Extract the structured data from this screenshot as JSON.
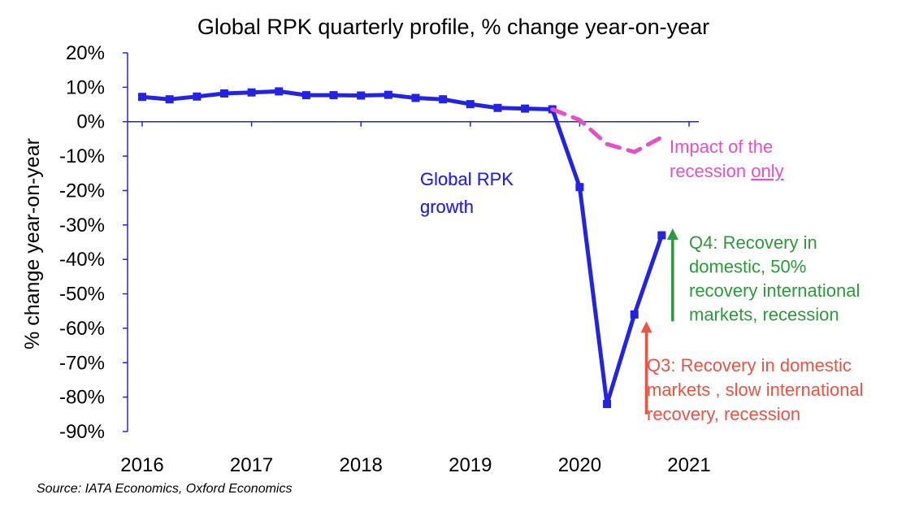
{
  "chart_data": {
    "type": "line",
    "title": "Global RPK quarterly profile, % change year-on-year",
    "ylabel": "% change year-on-year",
    "xlabel": "",
    "ylim": [
      -90,
      20
    ],
    "yticks": [
      20,
      10,
      0,
      -10,
      -20,
      -30,
      -40,
      -50,
      -60,
      -70,
      -80,
      -90
    ],
    "ytick_labels": [
      "20%",
      "10%",
      "0%",
      "-10%",
      "-20%",
      "-30%",
      "-40%",
      "-50%",
      "-60%",
      "-70%",
      "-80%",
      "-90%"
    ],
    "xlim": [
      2016,
      2021
    ],
    "xticks": [
      2016,
      2017,
      2018,
      2019,
      2020,
      2021
    ],
    "xtick_labels": [
      "2016",
      "2017",
      "2018",
      "2019",
      "2020",
      "2021"
    ],
    "grid": false,
    "series": [
      {
        "name": "Global RPK growth",
        "color": "#2323e6",
        "style": "solid",
        "markers": true,
        "points": [
          [
            2016.0,
            7.2
          ],
          [
            2016.25,
            6.5
          ],
          [
            2016.5,
            7.3
          ],
          [
            2016.75,
            8.2
          ],
          [
            2017.0,
            8.5
          ],
          [
            2017.25,
            8.8
          ],
          [
            2017.5,
            7.7
          ],
          [
            2017.75,
            7.7
          ],
          [
            2018.0,
            7.6
          ],
          [
            2018.25,
            7.8
          ],
          [
            2018.5,
            6.9
          ],
          [
            2018.75,
            6.5
          ],
          [
            2019.0,
            5.1
          ],
          [
            2019.25,
            4.0
          ],
          [
            2019.5,
            3.8
          ],
          [
            2019.75,
            3.6
          ],
          [
            2020.0,
            -19
          ],
          [
            2020.25,
            -82
          ],
          [
            2020.5,
            -56
          ],
          [
            2020.75,
            -33
          ]
        ]
      },
      {
        "name": "Impact of the recession only",
        "color": "#e64fc8",
        "style": "dashed",
        "markers": false,
        "points": [
          [
            2019.75,
            3.6
          ],
          [
            2020.0,
            0.5
          ],
          [
            2020.25,
            -6.5
          ],
          [
            2020.5,
            -8.8
          ],
          [
            2020.75,
            -4.5
          ]
        ]
      }
    ],
    "annotations": {
      "rpk_label": [
        "Global RPK",
        "growth"
      ],
      "recession_label_line1": "Impact of the",
      "recession_label_line2_pre": "recession ",
      "recession_label_line2_underlined": "only",
      "q4_label": [
        "Q4:  Recovery in",
        "domestic, 50%",
        "recovery international",
        "markets, recession"
      ],
      "q3_label": [
        "Q3: Recovery in domestic",
        "markets , slow international",
        "recovery, recession"
      ],
      "q4_arrow": {
        "x": 2020.85,
        "from": -58,
        "to": -31
      },
      "q3_arrow": {
        "x": 2020.61,
        "from": -85,
        "to": -58
      },
      "colors": {
        "q4": "#2b9a3a",
        "q3": "#ec5343",
        "rpk": "#2323e6",
        "recession": "#e64fc8"
      }
    },
    "source": "Source: IATA Economics, Oxford Economics"
  }
}
